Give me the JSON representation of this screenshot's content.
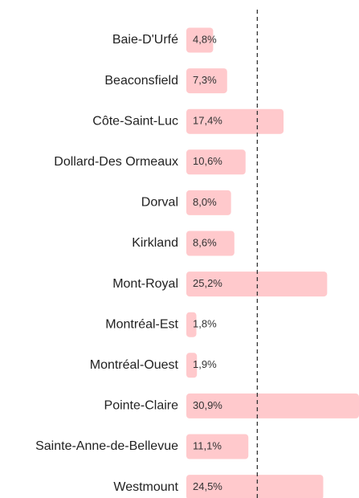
{
  "chart_data": {
    "type": "bar",
    "orientation": "horizontal",
    "categories": [
      "Baie-D'Urfé",
      "Beaconsfield",
      "Côte-Saint-Luc",
      "Dollard-Des Ormeaux",
      "Dorval",
      "Kirkland",
      "Mont-Royal",
      "Montréal-Est",
      "Montréal-Ouest",
      "Pointe-Claire",
      "Sainte-Anne-de-Bellevue",
      "Westmount"
    ],
    "values": [
      4.8,
      7.3,
      17.4,
      10.6,
      8.0,
      8.6,
      25.2,
      1.8,
      1.9,
      30.9,
      11.1,
      24.5
    ],
    "value_labels": [
      "4,8%",
      "7,3%",
      "17,4%",
      "10,6%",
      "8,0%",
      "8,6%",
      "25,2%",
      "1,8%",
      "1,9%",
      "30,9%",
      "11,1%",
      "24,5%"
    ],
    "color": "#ffc9cc",
    "xlim": [
      0,
      30.9
    ],
    "reference_line": 12.7,
    "reference_color": "#333333"
  }
}
